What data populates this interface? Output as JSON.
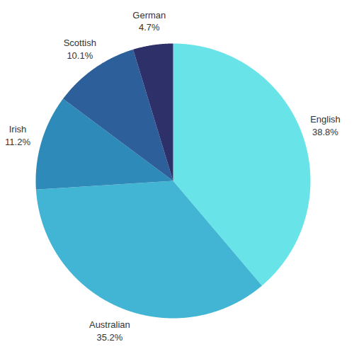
{
  "chart_data": {
    "type": "pie",
    "categories": [
      "English",
      "Australian",
      "Irish",
      "Scottish",
      "German"
    ],
    "values": [
      38.8,
      35.2,
      11.2,
      10.1,
      4.7
    ],
    "value_labels": [
      "38.8%",
      "35.2%",
      "11.2%",
      "10.1%",
      "4.7%"
    ],
    "data_labels": true,
    "colors": [
      "#68e4e8",
      "#42b5d4",
      "#2e8ab8",
      "#2d5f9a",
      "#2e3169"
    ]
  }
}
